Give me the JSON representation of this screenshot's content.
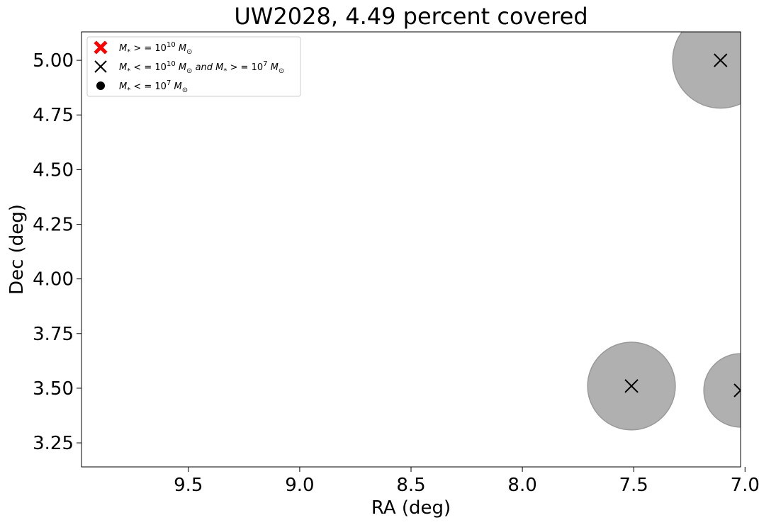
{
  "chart_data": {
    "type": "scatter",
    "title": "UW2028, 4.49 percent covered",
    "xlabel": "RA (deg)",
    "ylabel": "Dec (deg)",
    "xlim": [
      9.98,
      7.02
    ],
    "ylim": [
      3.14,
      5.13
    ],
    "x_inverted": true,
    "xticks": [
      9.5,
      9.0,
      8.5,
      8.0,
      7.5,
      7.0
    ],
    "xtick_labels": [
      "9.5",
      "9.0",
      "8.5",
      "8.0",
      "7.5",
      "7.0"
    ],
    "yticks": [
      3.25,
      3.5,
      3.75,
      4.0,
      4.25,
      4.5,
      4.75,
      5.0
    ],
    "ytick_labels": [
      "3.25",
      "3.50",
      "3.75",
      "4.00",
      "4.25",
      "4.50",
      "4.75",
      "5.00"
    ],
    "grid": false,
    "legend_placement": "top-left",
    "legend": [
      {
        "name": "M_* >= 10^10 M_sun",
        "marker": "filled-x",
        "color": "#ff0000",
        "pre": "M",
        "sub1": "*",
        "mid": " > = 10",
        "sup1": "10",
        "mid2": " M",
        "sub2": "⊙"
      },
      {
        "name": "10^7 <= M_* <= 10^10 M_sun",
        "marker": "x",
        "color": "#000000",
        "pre": "M",
        "sub1": "*",
        "mid": " < = 10",
        "sup1": "10",
        "mid2": " M",
        "sub2": "⊙",
        "tail": "  and  M",
        "sub3": "*",
        "tail2": " > = 10",
        "sup2": "7",
        "tail3": " M",
        "sub4": "⊙"
      },
      {
        "name": "M_* <= 10^7 M_sun",
        "marker": "dot",
        "color": "#000000",
        "pre": "M",
        "sub1": "*",
        "mid": " < = 10",
        "sup1": "7",
        "mid2": " M",
        "sub2": "⊙"
      }
    ],
    "points": [
      {
        "ra": 7.11,
        "dec": 5.0,
        "radius_deg": 0.215,
        "marker": "x"
      },
      {
        "ra": 7.51,
        "dec": 3.51,
        "radius_deg": 0.197,
        "marker": "x"
      },
      {
        "ra": 7.02,
        "dec": 3.49,
        "radius_deg": 0.165,
        "marker": "x"
      }
    ],
    "circle_color": "#b0b0b0",
    "circle_edge_color": "#999999"
  }
}
